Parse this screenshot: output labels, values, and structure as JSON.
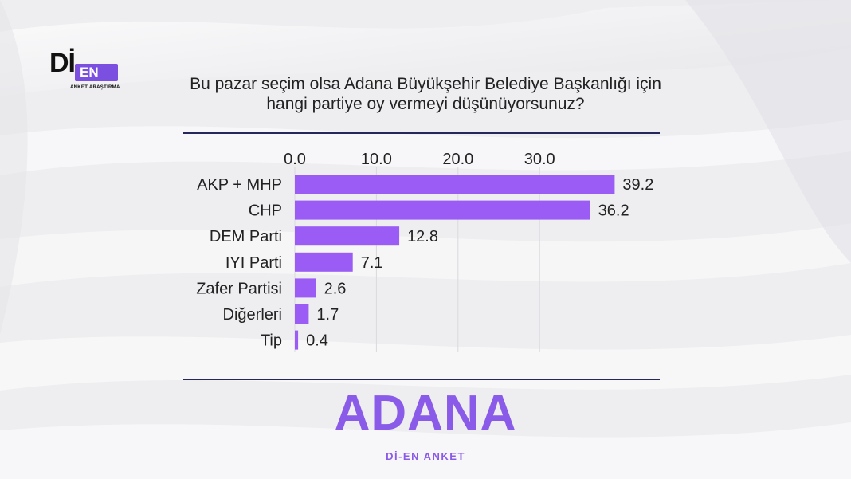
{
  "logo": {
    "main": "Dİ",
    "badge": "EN",
    "subtitle": "ANKET ARAŞTIRMA"
  },
  "question": {
    "line1": "Bu pazar seçim olsa Adana Büyükşehir Belediye Başkanlığı için",
    "line2": "hangi partiye oy vermeyi düşünüyorsunuz?"
  },
  "city": "ADANA",
  "brand": "Dİ-EN ANKET",
  "colors": {
    "bar": "#9b5cf6",
    "accent": "#8a5be8",
    "rule": "#26275b"
  },
  "chart_data": {
    "type": "bar",
    "orientation": "horizontal",
    "categories": [
      "AKP + MHP",
      "CHP",
      "DEM Parti",
      "IYI Parti",
      "Zafer Partisi",
      "Diğerleri",
      "Tip"
    ],
    "values": [
      39.2,
      36.2,
      12.8,
      7.1,
      2.6,
      1.7,
      0.4
    ],
    "value_labels": [
      "39.2",
      "36.2",
      "12.8",
      "7.1",
      "2.6",
      "1.7",
      "0.4"
    ],
    "axis_ticks": [
      "0.0",
      "10.0",
      "20.0",
      "30.0"
    ],
    "tick_values": [
      0,
      10,
      20,
      30
    ],
    "xlim": [
      0,
      40
    ],
    "axis_position": "top",
    "grid": true,
    "title": "",
    "xlabel": "",
    "ylabel": ""
  }
}
